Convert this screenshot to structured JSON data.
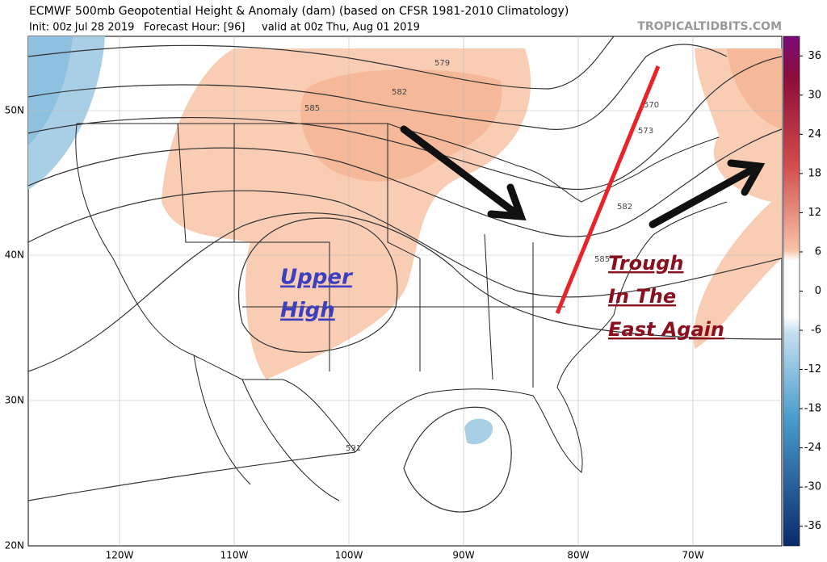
{
  "header": {
    "title": "ECMWF 500mb Geopotential Height & Anomaly (dam) (based on CFSR 1981-2010 Climatology)",
    "init": "Init: 00z Jul 28 2019",
    "forecast": "Forecast Hour: [96]",
    "valid": "valid at 00z Thu, Aug 01 2019",
    "source": "TROPICALTIDBITS.COM"
  },
  "latitude_labels": [
    "50N",
    "40N",
    "30N",
    "20N"
  ],
  "longitude_labels": [
    "120W",
    "110W",
    "100W",
    "90W",
    "80W",
    "70W"
  ],
  "contour_labels": [
    "579",
    "582",
    "585",
    "570",
    "573",
    "582",
    "585",
    "591"
  ],
  "annotations": [
    "Upper",
    "High",
    "Trough",
    "In The",
    "East Again"
  ],
  "colorbar": {
    "range": [
      -39,
      39
    ],
    "ticks": [
      36,
      30,
      24,
      18,
      12,
      6,
      0,
      -6,
      -12,
      -18,
      -24,
      -30,
      -36
    ]
  }
}
